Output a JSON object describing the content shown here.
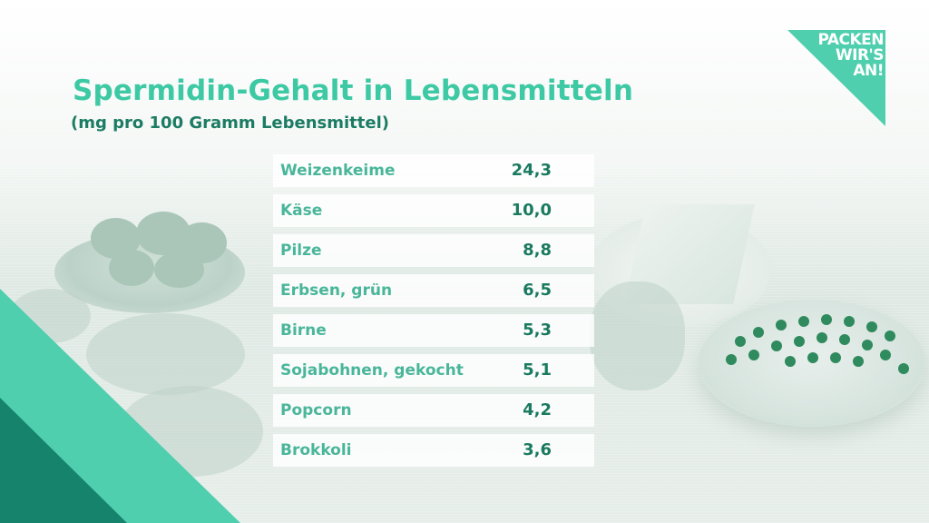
{
  "logo": {
    "lines": [
      "PACKEN",
      "WIR'S",
      "AN!"
    ],
    "color": "#4fcfae"
  },
  "colors": {
    "accent": "#3dc9a4",
    "dark_accent": "#1a7a60",
    "triangle_light": "#4fcfae",
    "triangle_dark": "#16836d"
  },
  "chart_data": {
    "type": "table",
    "title": "Spermidin-Gehalt in Lebensmitteln",
    "subtitle": "(mg pro 100 Gramm Lebensmittel)",
    "rows": [
      {
        "label": "Weizenkeime",
        "value": "24,3"
      },
      {
        "label": "Käse",
        "value": "10,0"
      },
      {
        "label": "Pilze",
        "value": "8,8"
      },
      {
        "label": "Erbsen, grün",
        "value": "6,5"
      },
      {
        "label": "Birne",
        "value": "5,3"
      },
      {
        "label": "Sojabohnen, gekocht",
        "value": "5,1"
      },
      {
        "label": "Popcorn",
        "value": "4,2"
      },
      {
        "label": "Brokkoli",
        "value": "3,6"
      }
    ]
  }
}
